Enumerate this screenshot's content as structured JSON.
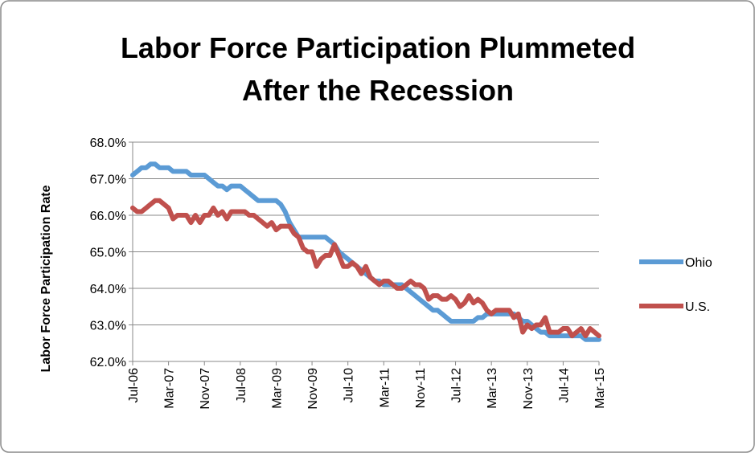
{
  "chart_data": {
    "type": "line",
    "title": [
      "Labor Force Participation Plummeted",
      "After the Recession"
    ],
    "y_label": "Labor Force Participation Rate",
    "categories": [
      "Jul-06",
      null,
      null,
      null,
      null,
      null,
      null,
      null,
      "Mar-07",
      null,
      null,
      null,
      null,
      null,
      null,
      null,
      "Nov-07",
      null,
      null,
      null,
      null,
      null,
      null,
      null,
      "Jul-08",
      null,
      null,
      null,
      null,
      null,
      null,
      null,
      "Mar-09",
      null,
      null,
      null,
      null,
      null,
      null,
      null,
      "Nov-09",
      null,
      null,
      null,
      null,
      null,
      null,
      null,
      "Jul-10",
      null,
      null,
      null,
      null,
      null,
      null,
      null,
      "Mar-11",
      null,
      null,
      null,
      null,
      null,
      null,
      null,
      "Nov-11",
      null,
      null,
      null,
      null,
      null,
      null,
      null,
      "Jul-12",
      null,
      null,
      null,
      null,
      null,
      null,
      null,
      "Mar-13",
      null,
      null,
      null,
      null,
      null,
      null,
      null,
      "Nov-13",
      null,
      null,
      null,
      null,
      null,
      null,
      null,
      "Jul-14",
      null,
      null,
      null,
      null,
      null,
      null,
      null,
      "Mar-15"
    ],
    "series": [
      {
        "name": "Ohio",
        "color": "#5b9bd5",
        "values": [
          67.1,
          67.2,
          67.3,
          67.3,
          67.4,
          67.4,
          67.3,
          67.3,
          67.3,
          67.2,
          67.2,
          67.2,
          67.2,
          67.1,
          67.1,
          67.1,
          67.1,
          67.0,
          66.9,
          66.8,
          66.8,
          66.7,
          66.8,
          66.8,
          66.8,
          66.7,
          66.6,
          66.5,
          66.4,
          66.4,
          66.4,
          66.4,
          66.4,
          66.3,
          66.1,
          65.8,
          65.6,
          65.4,
          65.4,
          65.4,
          65.4,
          65.4,
          65.4,
          65.4,
          65.3,
          65.2,
          65.0,
          64.9,
          64.8,
          64.7,
          64.6,
          64.5,
          64.4,
          64.3,
          64.2,
          64.2,
          64.1,
          64.1,
          64.1,
          64.1,
          64.1,
          64.0,
          63.9,
          63.8,
          63.7,
          63.6,
          63.5,
          63.4,
          63.4,
          63.3,
          63.2,
          63.1,
          63.1,
          63.1,
          63.1,
          63.1,
          63.1,
          63.2,
          63.2,
          63.3,
          63.3,
          63.3,
          63.3,
          63.3,
          63.3,
          63.3,
          63.2,
          63.1,
          63.1,
          63.0,
          62.9,
          62.8,
          62.8,
          62.7,
          62.7,
          62.7,
          62.7,
          62.7,
          62.7,
          62.7,
          62.7,
          62.6,
          62.6,
          62.6,
          62.6
        ]
      },
      {
        "name": "U.S.",
        "color": "#c0504d",
        "values": [
          66.2,
          66.1,
          66.1,
          66.2,
          66.3,
          66.4,
          66.4,
          66.3,
          66.2,
          65.9,
          66.0,
          66.0,
          66.0,
          65.8,
          66.0,
          65.8,
          66.0,
          66.0,
          66.2,
          66.0,
          66.1,
          65.9,
          66.1,
          66.1,
          66.1,
          66.1,
          66.0,
          66.0,
          65.9,
          65.8,
          65.7,
          65.8,
          65.6,
          65.7,
          65.7,
          65.7,
          65.5,
          65.4,
          65.1,
          65.0,
          65.0,
          64.6,
          64.8,
          64.9,
          64.9,
          65.2,
          64.9,
          64.6,
          64.6,
          64.7,
          64.6,
          64.4,
          64.6,
          64.3,
          64.2,
          64.1,
          64.2,
          64.2,
          64.1,
          64.0,
          64.0,
          64.1,
          64.2,
          64.1,
          64.1,
          64.0,
          63.7,
          63.8,
          63.8,
          63.7,
          63.7,
          63.8,
          63.7,
          63.5,
          63.6,
          63.8,
          63.6,
          63.7,
          63.6,
          63.4,
          63.3,
          63.4,
          63.4,
          63.4,
          63.4,
          63.2,
          63.3,
          62.8,
          63.0,
          62.9,
          63.0,
          63.0,
          63.2,
          62.8,
          62.8,
          62.8,
          62.9,
          62.9,
          62.7,
          62.8,
          62.9,
          62.7,
          62.9,
          62.8,
          62.7
        ]
      }
    ],
    "ylim": [
      62,
      68
    ],
    "yticks": [
      {
        "value": 62,
        "label": "62.0%"
      },
      {
        "value": 63,
        "label": "63.0%"
      },
      {
        "value": 64,
        "label": "64.0%"
      },
      {
        "value": 65,
        "label": "65.0%"
      },
      {
        "value": 66,
        "label": "66.0%"
      },
      {
        "value": 67,
        "label": "67.0%"
      },
      {
        "value": 68,
        "label": "68.0%"
      }
    ],
    "grid": true,
    "legend": "right"
  }
}
